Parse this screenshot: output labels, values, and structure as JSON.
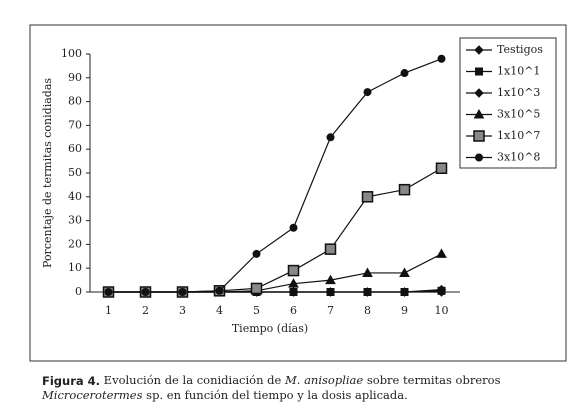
{
  "chart_data": {
    "type": "line",
    "x": [
      1,
      2,
      3,
      4,
      5,
      6,
      7,
      8,
      9,
      10
    ],
    "xlim": [
      0.5,
      10.5
    ],
    "xticks": [
      1,
      2,
      3,
      4,
      5,
      6,
      7,
      8,
      9,
      10
    ],
    "ylim": [
      0,
      100
    ],
    "yticks": [
      0,
      10,
      20,
      30,
      40,
      50,
      60,
      70,
      80,
      90,
      100
    ],
    "xlabel": "Tiempo (días)",
    "ylabel": "Porcentaje de termitas conidiadas",
    "legend": "right",
    "series": [
      {
        "name": "Testigos",
        "color": "#111",
        "marker": "diamond",
        "values": [
          0,
          0,
          0,
          0,
          0,
          0,
          0,
          0,
          0,
          0
        ]
      },
      {
        "name": "1x10^1",
        "color": "#111",
        "marker": "square",
        "values": [
          0,
          0,
          0,
          0,
          0,
          0,
          0,
          0,
          0,
          0.5
        ]
      },
      {
        "name": "1x10^3",
        "color": "#111",
        "marker": "diamond",
        "values": [
          0,
          0,
          0,
          0,
          0,
          0,
          0,
          0,
          0,
          1
        ]
      },
      {
        "name": "3x10^5",
        "color": "#111",
        "marker": "triangle",
        "values": [
          0,
          0,
          0,
          0,
          0.5,
          3.5,
          5,
          8,
          8,
          16
        ]
      },
      {
        "name": "1x10^7",
        "color": "#111",
        "marker": "bigsquare",
        "values": [
          0,
          0,
          0,
          0.5,
          1.5,
          9,
          18,
          40,
          43,
          52
        ]
      },
      {
        "name": "3x10^8",
        "color": "#111",
        "marker": "circle",
        "values": [
          0,
          0,
          0,
          0.5,
          16,
          27,
          65,
          84,
          92,
          98
        ]
      }
    ]
  },
  "caption": {
    "label": "Figura 4.",
    "text1": " Evolución de la conidiación de ",
    "species": "M. anisopliae",
    "text2": " sobre termitas obreros",
    "genus": "Microcerotermes",
    "text3": " sp. en función del tiempo y la dosis aplicada."
  }
}
